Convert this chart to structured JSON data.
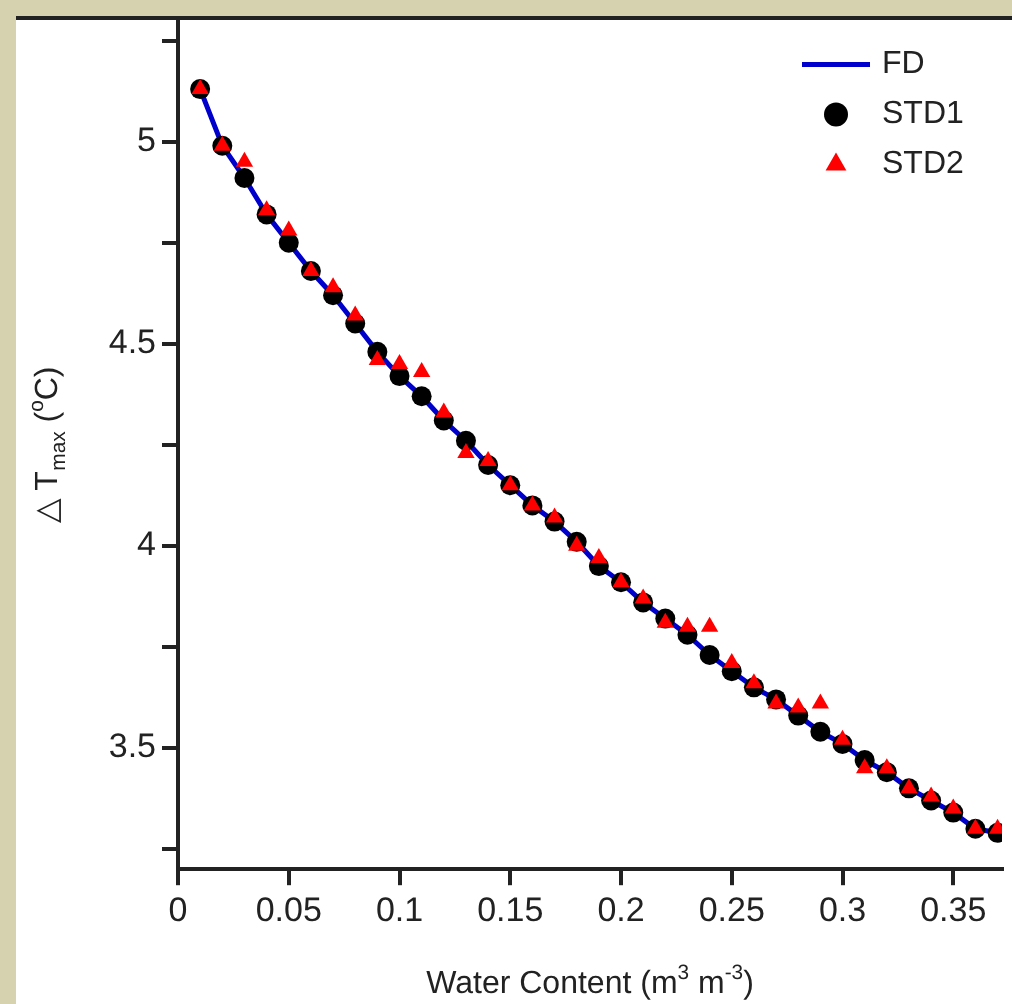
{
  "chart_data": {
    "type": "scatter",
    "xlabel": "Water Content (m$^{3}$ m$^{-3}$)",
    "ylabel": "△ T$_{max}$ ($^{o}$C)",
    "x": [
      0.01,
      0.02,
      0.03,
      0.04,
      0.05,
      0.06,
      0.07,
      0.08,
      0.09,
      0.1,
      0.11,
      0.12,
      0.13,
      0.14,
      0.15,
      0.16,
      0.17,
      0.18,
      0.19,
      0.2,
      0.21,
      0.22,
      0.23,
      0.24,
      0.25,
      0.26,
      0.27,
      0.28,
      0.29,
      0.3,
      0.31,
      0.32,
      0.33,
      0.34,
      0.35,
      0.36,
      0.37
    ],
    "series": [
      {
        "name": "FD",
        "type": "line",
        "color": "#0000cc",
        "marker": "none",
        "values": [
          5.13,
          4.99,
          4.91,
          4.82,
          4.75,
          4.68,
          4.62,
          4.55,
          4.48,
          4.42,
          4.37,
          4.31,
          4.26,
          4.2,
          4.15,
          4.1,
          4.06,
          4.01,
          3.95,
          3.91,
          3.86,
          3.82,
          3.78,
          3.73,
          3.69,
          3.65,
          3.62,
          3.58,
          3.54,
          3.51,
          3.47,
          3.44,
          3.4,
          3.37,
          3.34,
          3.3,
          3.29
        ]
      },
      {
        "name": "STD1",
        "color": "#000000",
        "marker": "circle",
        "values": [
          5.13,
          4.99,
          4.91,
          4.82,
          4.75,
          4.68,
          4.62,
          4.55,
          4.48,
          4.42,
          4.37,
          4.31,
          4.26,
          4.2,
          4.15,
          4.1,
          4.06,
          4.01,
          3.95,
          3.91,
          3.86,
          3.82,
          3.78,
          3.73,
          3.69,
          3.65,
          3.62,
          3.58,
          3.54,
          3.51,
          3.47,
          3.44,
          3.4,
          3.37,
          3.34,
          3.3,
          3.29
        ]
      },
      {
        "name": "STD2",
        "color": "#ff0000",
        "marker": "triangle",
        "values": [
          5.13,
          4.99,
          4.95,
          4.83,
          4.78,
          4.68,
          4.64,
          4.57,
          4.46,
          4.45,
          4.43,
          4.33,
          4.23,
          4.21,
          4.15,
          4.1,
          4.07,
          4,
          3.97,
          3.91,
          3.87,
          3.81,
          3.8,
          3.8,
          3.71,
          3.66,
          3.61,
          3.6,
          3.61,
          3.52,
          3.45,
          3.45,
          3.4,
          3.38,
          3.35,
          3.3,
          3.3
        ]
      }
    ],
    "xlim": [
      0,
      0.372
    ],
    "xticks": [
      0,
      0.05,
      0.1,
      0.15,
      0.2,
      0.25,
      0.3,
      0.35
    ],
    "ylim": [
      3.2,
      5.3
    ],
    "yticks": [
      {
        "value": 3.25,
        "label": null
      },
      3.5,
      {
        "value": 3.75,
        "label": null
      },
      4,
      {
        "value": 4.25,
        "label": null
      },
      4.5,
      {
        "value": 4.75,
        "label": null
      },
      5,
      {
        "value": 5.25,
        "label": null
      }
    ],
    "grid": false,
    "legend": "top right"
  }
}
